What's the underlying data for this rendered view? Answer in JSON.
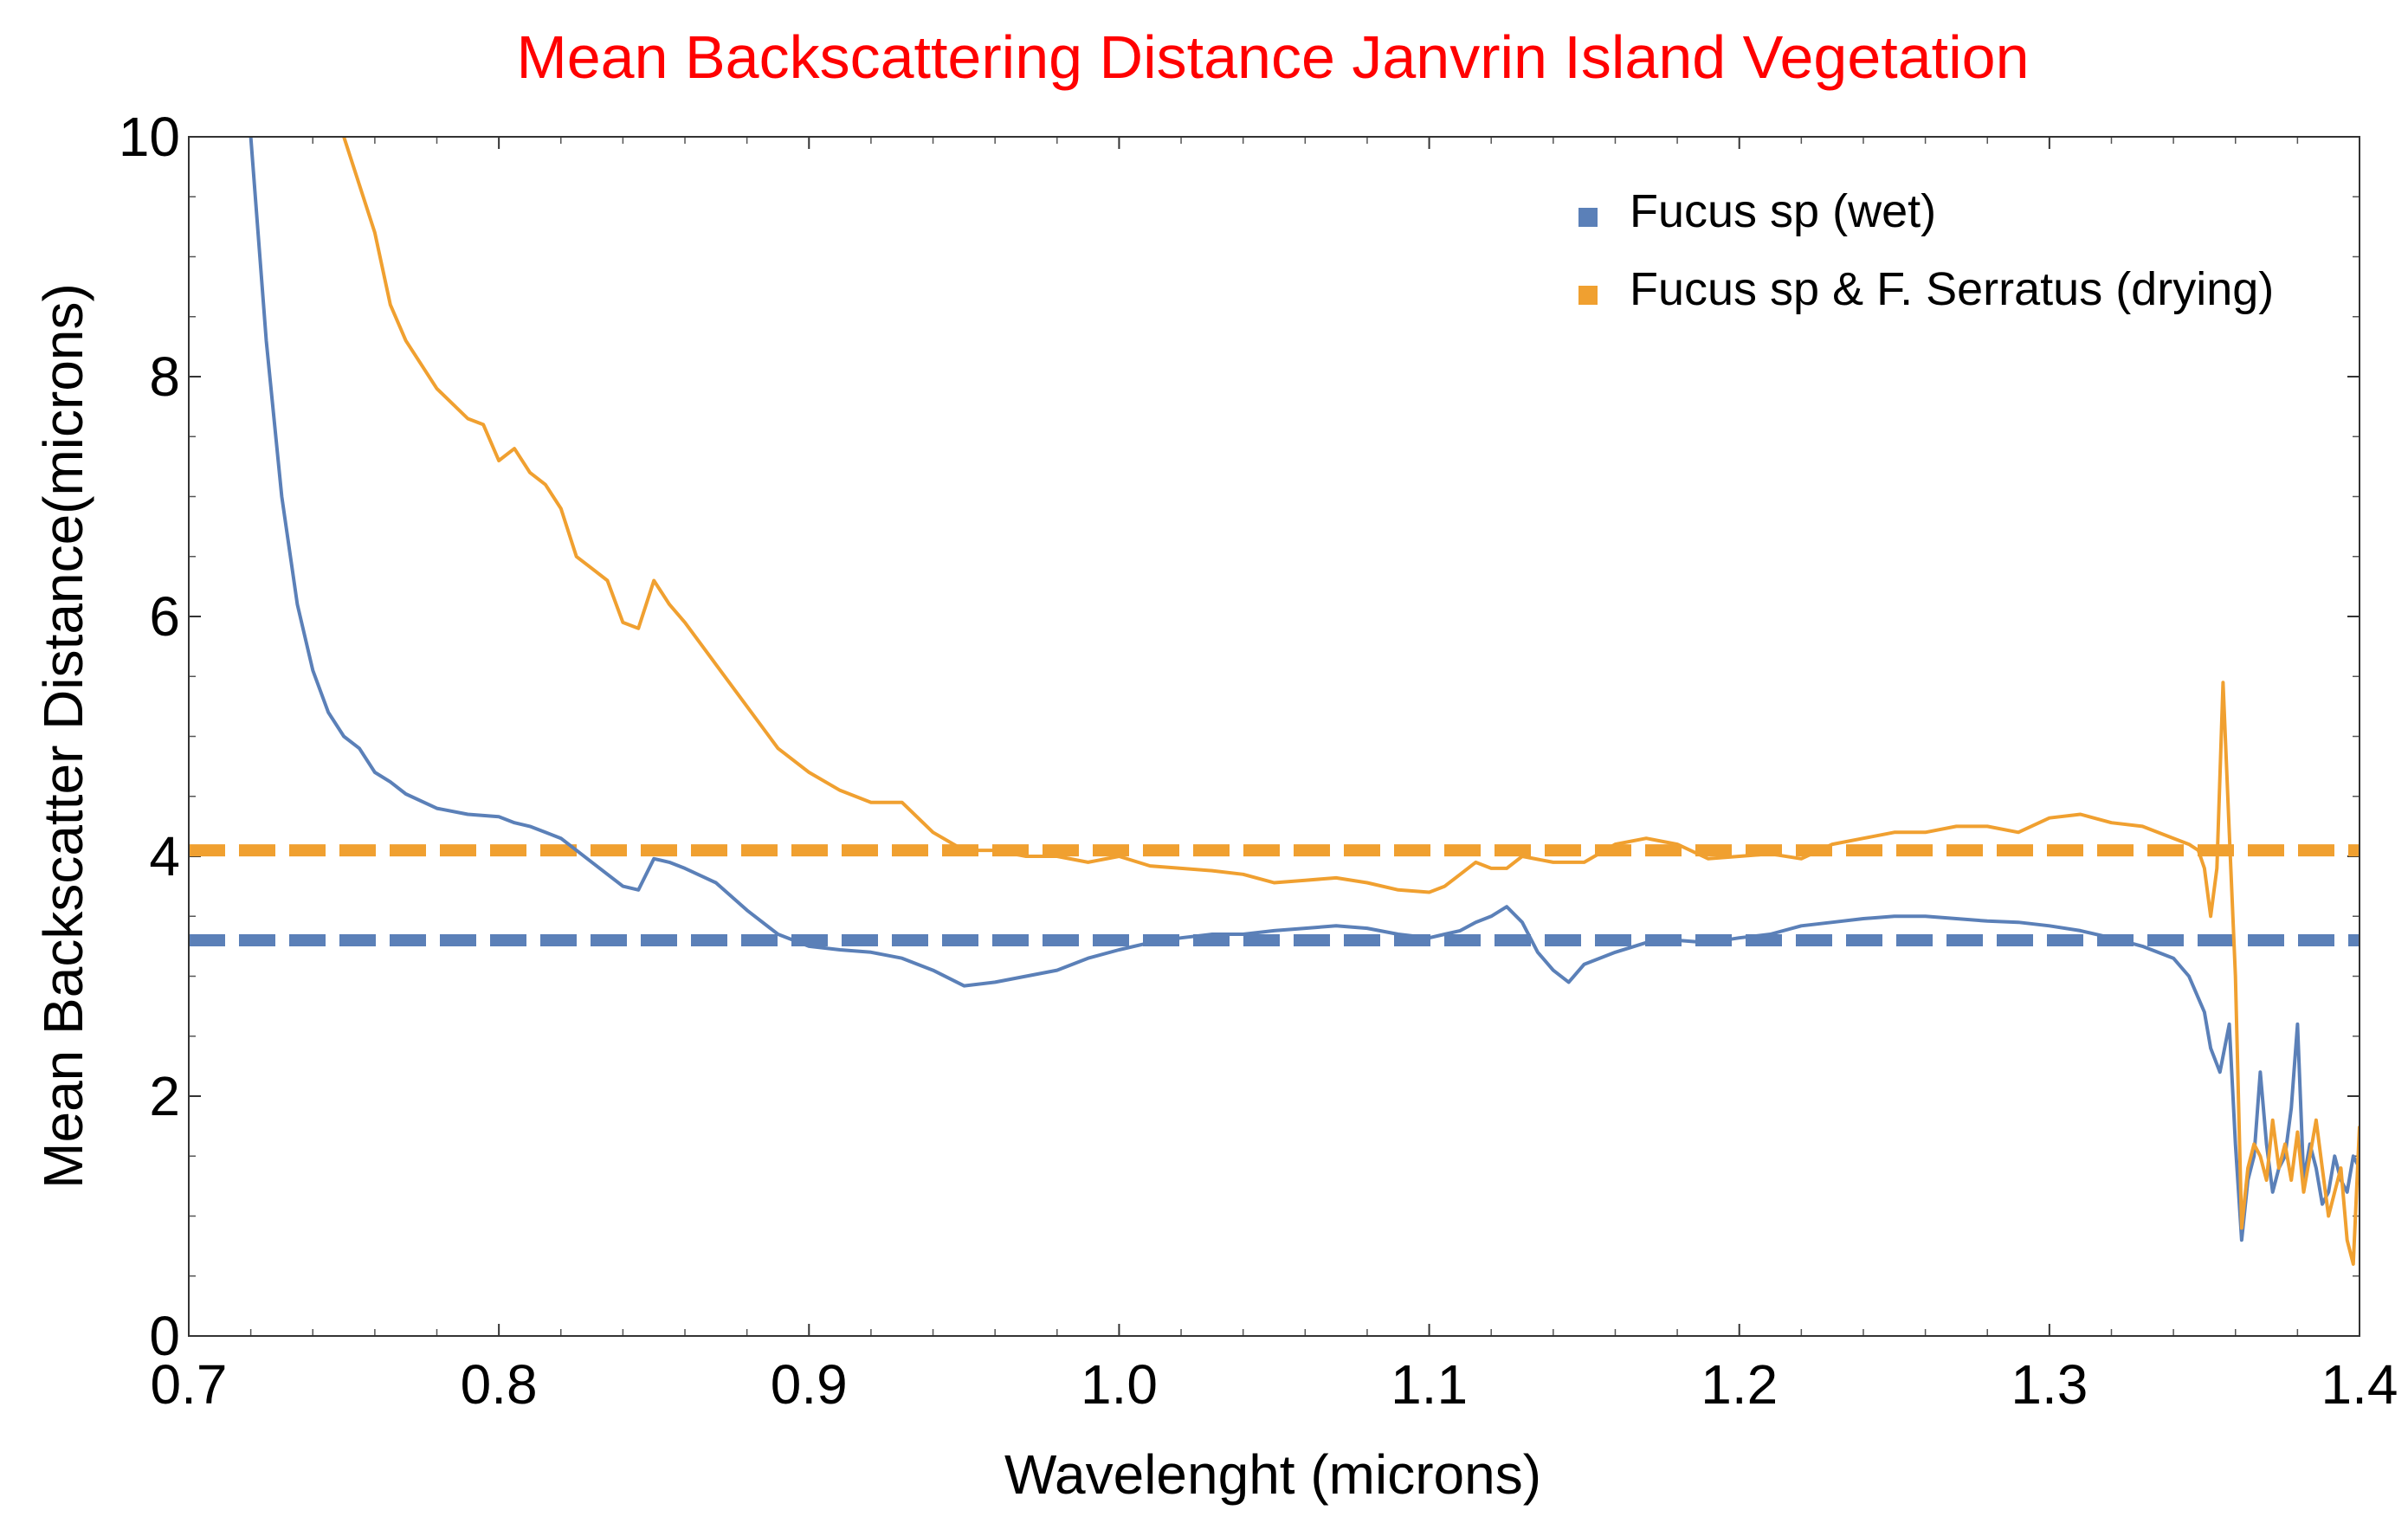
{
  "chart_data": {
    "type": "line",
    "title": "Mean Backscattering Distance Janvrin Island Vegetation",
    "title_color": "#ff0000",
    "xlabel": "Wavelenght (microns)",
    "ylabel": "Mean Backscatter Distance(microns)",
    "xlim": [
      0.7,
      1.4
    ],
    "ylim": [
      0,
      10
    ],
    "x_ticks": [
      0.7,
      0.8,
      0.9,
      1.0,
      1.1,
      1.2,
      1.3,
      1.4
    ],
    "x_tick_labels": [
      "0.7",
      "0.8",
      "0.9",
      "1.0",
      "1.1",
      "1.2",
      "1.3",
      "1.4"
    ],
    "y_ticks": [
      0,
      2,
      4,
      6,
      8,
      10
    ],
    "y_tick_labels": [
      "0",
      "2",
      "4",
      "6",
      "8",
      "10"
    ],
    "legend_position": "top-right",
    "series": [
      {
        "name": "Fucus sp (wet)",
        "color": "#5b80b8",
        "mean": 3.3,
        "x": [
          0.72,
          0.725,
          0.73,
          0.735,
          0.74,
          0.745,
          0.75,
          0.755,
          0.76,
          0.765,
          0.77,
          0.78,
          0.79,
          0.8,
          0.805,
          0.81,
          0.815,
          0.82,
          0.83,
          0.84,
          0.845,
          0.85,
          0.855,
          0.86,
          0.87,
          0.88,
          0.89,
          0.9,
          0.91,
          0.92,
          0.93,
          0.94,
          0.95,
          0.96,
          0.97,
          0.98,
          0.99,
          1.0,
          1.01,
          1.02,
          1.03,
          1.04,
          1.05,
          1.06,
          1.07,
          1.08,
          1.09,
          1.1,
          1.105,
          1.11,
          1.115,
          1.12,
          1.125,
          1.13,
          1.135,
          1.14,
          1.145,
          1.15,
          1.16,
          1.17,
          1.18,
          1.19,
          1.2,
          1.21,
          1.22,
          1.23,
          1.24,
          1.25,
          1.26,
          1.27,
          1.28,
          1.29,
          1.3,
          1.31,
          1.32,
          1.33,
          1.34,
          1.345,
          1.35,
          1.352,
          1.355,
          1.358,
          1.36,
          1.362,
          1.364,
          1.366,
          1.368,
          1.37,
          1.372,
          1.374,
          1.376,
          1.378,
          1.38,
          1.382,
          1.384,
          1.386,
          1.388,
          1.39,
          1.392,
          1.394,
          1.396,
          1.398,
          1.4
        ],
        "y": [
          10.0,
          8.3,
          7.0,
          6.1,
          5.55,
          5.2,
          5.0,
          4.9,
          4.7,
          4.62,
          4.52,
          4.4,
          4.35,
          4.33,
          4.28,
          4.25,
          4.2,
          4.15,
          3.95,
          3.75,
          3.72,
          3.98,
          3.95,
          3.9,
          3.78,
          3.55,
          3.35,
          3.25,
          3.22,
          3.2,
          3.15,
          3.05,
          2.92,
          2.95,
          3.0,
          3.05,
          3.15,
          3.22,
          3.28,
          3.32,
          3.35,
          3.35,
          3.38,
          3.4,
          3.42,
          3.4,
          3.35,
          3.32,
          3.35,
          3.38,
          3.45,
          3.5,
          3.58,
          3.45,
          3.2,
          3.05,
          2.95,
          3.1,
          3.2,
          3.28,
          3.3,
          3.28,
          3.32,
          3.35,
          3.42,
          3.45,
          3.48,
          3.5,
          3.5,
          3.48,
          3.46,
          3.45,
          3.42,
          3.38,
          3.32,
          3.25,
          3.15,
          3.0,
          2.7,
          2.4,
          2.2,
          2.6,
          1.6,
          0.8,
          1.3,
          1.5,
          2.2,
          1.6,
          1.2,
          1.4,
          1.5,
          1.9,
          2.6,
          1.3,
          1.6,
          1.4,
          1.1,
          1.2,
          1.5,
          1.3,
          1.2,
          1.5,
          1.4
        ]
      },
      {
        "name": "Fucus sp & F. Serratus (drying)",
        "color": "#f0a030",
        "mean": 4.05,
        "x": [
          0.75,
          0.755,
          0.76,
          0.765,
          0.77,
          0.78,
          0.79,
          0.795,
          0.8,
          0.805,
          0.81,
          0.815,
          0.82,
          0.825,
          0.83,
          0.835,
          0.84,
          0.845,
          0.85,
          0.855,
          0.86,
          0.87,
          0.88,
          0.89,
          0.9,
          0.91,
          0.92,
          0.93,
          0.94,
          0.95,
          0.96,
          0.97,
          0.98,
          0.99,
          1.0,
          1.01,
          1.02,
          1.03,
          1.04,
          1.05,
          1.06,
          1.07,
          1.08,
          1.09,
          1.1,
          1.105,
          1.11,
          1.115,
          1.12,
          1.125,
          1.13,
          1.14,
          1.15,
          1.16,
          1.17,
          1.18,
          1.19,
          1.2,
          1.21,
          1.22,
          1.23,
          1.24,
          1.25,
          1.26,
          1.27,
          1.28,
          1.29,
          1.3,
          1.31,
          1.32,
          1.33,
          1.34,
          1.345,
          1.348,
          1.35,
          1.352,
          1.354,
          1.356,
          1.358,
          1.36,
          1.362,
          1.364,
          1.366,
          1.368,
          1.37,
          1.372,
          1.374,
          1.376,
          1.378,
          1.38,
          1.382,
          1.384,
          1.386,
          1.388,
          1.39,
          1.392,
          1.394,
          1.396,
          1.398,
          1.4
        ],
        "y": [
          10.0,
          9.6,
          9.2,
          8.6,
          8.3,
          7.9,
          7.65,
          7.6,
          7.3,
          7.4,
          7.2,
          7.1,
          6.9,
          6.5,
          6.4,
          6.3,
          5.95,
          5.9,
          6.3,
          6.1,
          5.95,
          5.6,
          5.25,
          4.9,
          4.7,
          4.55,
          4.45,
          4.45,
          4.2,
          4.05,
          4.05,
          4.0,
          4.0,
          3.95,
          4.0,
          3.92,
          3.9,
          3.88,
          3.85,
          3.78,
          3.8,
          3.82,
          3.78,
          3.72,
          3.7,
          3.75,
          3.85,
          3.95,
          3.9,
          3.9,
          4.0,
          3.95,
          3.95,
          4.1,
          4.15,
          4.1,
          3.98,
          4.0,
          4.02,
          3.98,
          4.1,
          4.15,
          4.2,
          4.2,
          4.25,
          4.25,
          4.2,
          4.32,
          4.35,
          4.28,
          4.25,
          4.15,
          4.1,
          4.05,
          3.9,
          3.5,
          3.9,
          5.45,
          4.2,
          3.0,
          0.9,
          1.4,
          1.6,
          1.5,
          1.3,
          1.8,
          1.4,
          1.6,
          1.3,
          1.7,
          1.2,
          1.5,
          1.8,
          1.4,
          1.0,
          1.2,
          1.4,
          0.8,
          0.6,
          1.75
        ]
      }
    ]
  }
}
